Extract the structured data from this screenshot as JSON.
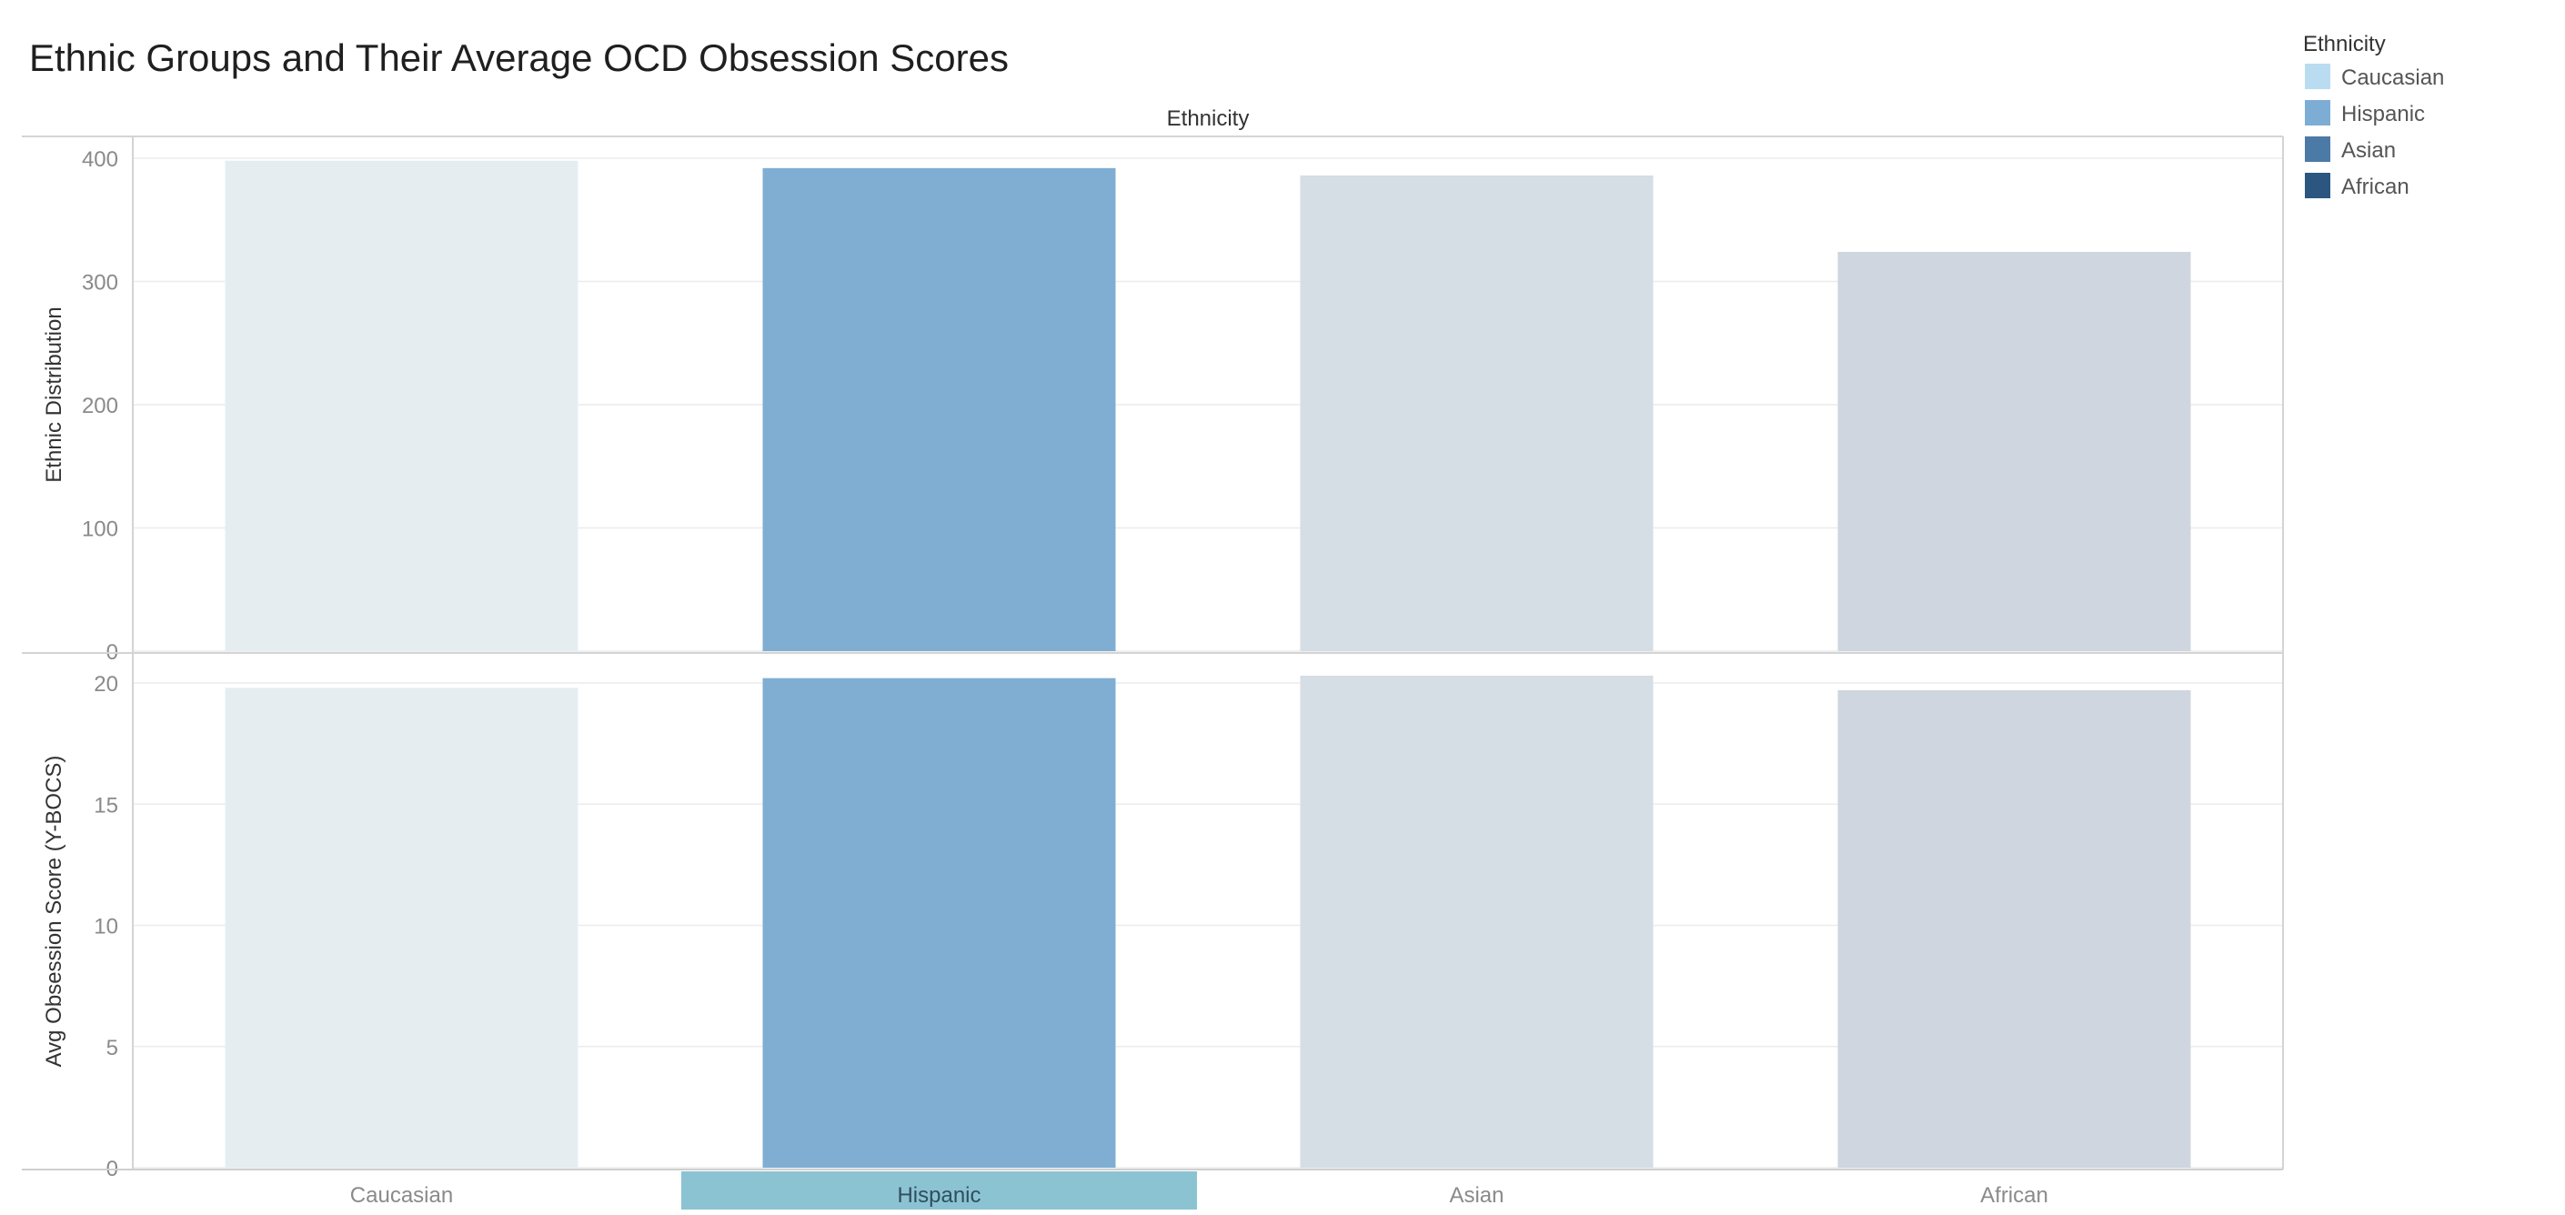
{
  "chart_data": {
    "type": "bar",
    "title": "Ethnic Groups and Their Average OCD Obsession Scores",
    "column_header": "Ethnicity",
    "categories": [
      "Caucasian",
      "Hispanic",
      "Asian",
      "African"
    ],
    "highlighted_category": "Hispanic",
    "panels": [
      {
        "ylabel": "Ethnic Distribution",
        "ylim": [
          0,
          400
        ],
        "ticks": [
          0,
          100,
          200,
          300,
          400
        ],
        "values": [
          398,
          392,
          386,
          324
        ]
      },
      {
        "ylabel": "Avg Obsession Score (Y-BOCS)",
        "ylim": [
          0,
          20
        ],
        "ticks": [
          0,
          5,
          10,
          15,
          20
        ],
        "values": [
          19.8,
          20.2,
          20.3,
          19.7
        ]
      }
    ],
    "bar_colors": [
      "#e6edf1",
      "#80aed3",
      "#d5dde5",
      "#cfd6df"
    ],
    "grid": true,
    "legend": {
      "title": "Ethnicity",
      "placement": "top-right",
      "items": [
        {
          "label": "Caucasian",
          "color": "#b9dcf0"
        },
        {
          "label": "Hispanic",
          "color": "#7dadd4"
        },
        {
          "label": "Asian",
          "color": "#4c7aa6"
        },
        {
          "label": "African",
          "color": "#2a5680"
        }
      ]
    },
    "highlight_color": "#8cc3d3"
  }
}
